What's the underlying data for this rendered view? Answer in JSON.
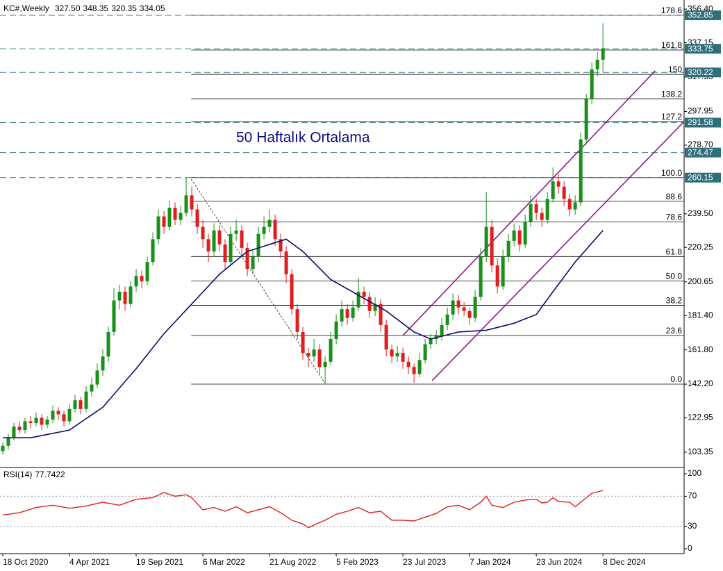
{
  "chart_data": [
    {
      "type": "candlestick",
      "title": "KC#,Weekly",
      "ohlc_labels": [
        "327.50",
        "348.35",
        "320.35",
        "334.05"
      ],
      "up_color": "#1a8f1a",
      "down_color": "#e01e1e",
      "xlim": [
        -0.5,
        122.6
      ],
      "ylim": [
        95,
        361.6
      ],
      "xticks": [
        {
          "value": 0,
          "label": "18 Oct 2020"
        },
        {
          "value": 12,
          "label": "4 Apr 2021"
        },
        {
          "value": 24,
          "label": "19 Sep 2021"
        },
        {
          "value": 36,
          "label": "6 Mar 2022"
        },
        {
          "value": 48,
          "label": "21 Aug 2022"
        },
        {
          "value": 60,
          "label": "5 Feb 2023"
        },
        {
          "value": 72,
          "label": "23 Jul 2023"
        },
        {
          "value": 84,
          "label": "7 Jan 2024"
        },
        {
          "value": 96,
          "label": "23 Jun 2024"
        },
        {
          "value": 108,
          "label": "8 Dec 2024"
        }
      ],
      "yticks": [
        {
          "value": 356.4,
          "label": "356.40"
        },
        337.15,
        317.55,
        {
          "value": 297.95,
          "label": "297.95"
        },
        {
          "value": 278.7,
          "label": "278.70"
        },
        {
          "value": 239.5,
          "label": "239.50"
        },
        220.25,
        200.65,
        {
          "value": 181.4,
          "label": "181.40"
        },
        {
          "value": 161.8,
          "label": "161.80"
        },
        {
          "value": 142.2,
          "label": "142.20"
        },
        122.95,
        103.35
      ],
      "candles": [
        [
          104,
          109,
          102,
          107
        ],
        [
          107,
          114,
          105,
          112
        ],
        [
          112,
          120,
          110,
          118
        ],
        [
          118,
          121,
          114,
          116
        ],
        [
          116,
          123,
          114,
          121
        ],
        [
          121,
          124,
          117,
          120
        ],
        [
          120,
          126,
          118,
          123
        ],
        [
          123,
          125,
          116,
          119
        ],
        [
          119,
          124,
          117,
          122
        ],
        [
          122,
          130,
          120,
          127
        ],
        [
          127,
          129,
          122,
          125
        ],
        [
          125,
          127,
          118,
          121
        ],
        [
          121,
          131,
          119,
          128
        ],
        [
          128,
          136,
          126,
          133
        ],
        [
          133,
          135,
          125,
          128
        ],
        [
          128,
          141,
          126,
          138
        ],
        [
          138,
          146,
          135,
          142
        ],
        [
          142,
          154,
          140,
          150
        ],
        [
          150,
          162,
          147,
          158
        ],
        [
          158,
          175,
          155,
          172
        ],
        [
          172,
          197,
          170,
          190
        ],
        [
          190,
          199,
          185,
          195
        ],
        [
          195,
          198,
          184,
          188
        ],
        [
          188,
          201,
          186,
          198
        ],
        [
          198,
          208,
          195,
          204
        ],
        [
          204,
          207,
          197,
          201
        ],
        [
          201,
          215,
          199,
          212
        ],
        [
          212,
          229,
          210,
          225
        ],
        [
          225,
          242,
          222,
          238
        ],
        [
          238,
          241,
          228,
          232
        ],
        [
          232,
          247,
          230,
          243
        ],
        [
          243,
          246,
          233,
          236
        ],
        [
          236,
          244,
          233,
          240
        ],
        [
          240,
          260,
          238,
          250
        ],
        [
          250,
          255,
          238,
          242
        ],
        [
          242,
          245,
          228,
          232
        ],
        [
          232,
          236,
          220,
          225
        ],
        [
          225,
          228,
          212,
          218
        ],
        [
          218,
          234,
          215,
          230
        ],
        [
          230,
          233,
          218,
          222
        ],
        [
          222,
          225,
          208,
          212
        ],
        [
          212,
          232,
          210,
          228
        ],
        [
          228,
          236,
          224,
          230
        ],
        [
          230,
          233,
          216,
          220
        ],
        [
          220,
          223,
          204,
          208
        ],
        [
          208,
          219,
          205,
          215
        ],
        [
          215,
          232,
          212,
          228
        ],
        [
          228,
          238,
          225,
          232
        ],
        [
          232,
          242,
          229,
          236
        ],
        [
          236,
          239,
          221,
          225
        ],
        [
          225,
          228,
          214,
          218
        ],
        [
          218,
          221,
          200,
          205
        ],
        [
          205,
          208,
          182,
          185
        ],
        [
          185,
          188,
          168,
          172
        ],
        [
          172,
          175,
          156,
          160
        ],
        [
          160,
          163,
          152,
          158
        ],
        [
          158,
          168,
          155,
          162
        ],
        [
          162,
          165,
          148,
          152
        ],
        [
          152,
          158,
          142.5,
          155
        ],
        [
          155,
          172,
          153,
          168
        ],
        [
          168,
          182,
          165,
          178
        ],
        [
          178,
          190,
          175,
          185
        ],
        [
          185,
          188,
          176,
          180
        ],
        [
          180,
          190,
          178,
          186
        ],
        [
          186,
          203,
          184,
          195
        ],
        [
          195,
          198,
          188,
          192
        ],
        [
          192,
          195,
          180,
          184
        ],
        [
          184,
          192,
          181,
          188
        ],
        [
          188,
          191,
          172,
          176
        ],
        [
          176,
          179,
          158,
          162
        ],
        [
          162,
          165,
          154,
          158
        ],
        [
          158,
          164,
          155,
          160
        ],
        [
          160,
          163,
          151,
          155
        ],
        [
          155,
          158,
          148,
          152
        ],
        [
          152,
          154,
          143,
          148
        ],
        [
          148,
          160,
          146,
          156
        ],
        [
          156,
          168,
          154,
          165
        ],
        [
          165,
          171,
          162,
          168
        ],
        [
          168,
          173,
          165,
          170
        ],
        [
          170,
          180,
          167,
          176
        ],
        [
          176,
          186,
          173,
          182
        ],
        [
          182,
          194,
          179,
          190
        ],
        [
          190,
          193,
          182,
          186
        ],
        [
          186,
          189,
          181,
          184
        ],
        [
          184,
          186,
          176,
          180
        ],
        [
          180,
          196,
          178,
          192
        ],
        [
          192,
          220,
          190,
          215
        ],
        [
          215,
          252,
          212,
          232
        ],
        [
          232,
          236,
          206,
          210
        ],
        [
          210,
          214,
          194,
          198
        ],
        [
          198,
          219,
          196,
          215
        ],
        [
          215,
          228,
          212,
          224
        ],
        [
          224,
          234,
          221,
          230
        ],
        [
          230,
          233,
          218,
          222
        ],
        [
          222,
          239,
          220,
          235
        ],
        [
          235,
          250,
          232,
          245
        ],
        [
          245,
          248,
          236,
          240
        ],
        [
          240,
          243,
          232,
          236
        ],
        [
          236,
          252,
          234,
          248
        ],
        [
          248,
          266,
          246,
          258
        ],
        [
          258,
          262,
          251,
          255
        ],
        [
          255,
          258,
          244,
          248
        ],
        [
          248,
          251,
          238,
          242
        ],
        [
          242,
          250,
          239,
          246
        ],
        [
          246,
          286,
          244,
          282
        ],
        [
          282,
          308,
          279,
          305
        ],
        [
          305,
          326,
          302,
          322
        ],
        [
          322,
          332,
          318,
          327.5
        ],
        [
          327.5,
          348.35,
          320.35,
          334.05
        ]
      ],
      "ma": {
        "color": "#0c0c6e",
        "x": [
          0,
          5,
          12,
          18,
          24,
          29,
          34,
          39,
          44,
          51,
          54,
          59,
          64,
          69,
          74,
          77,
          82,
          87,
          92,
          96,
          99,
          103,
          108
        ],
        "values": [
          111.6,
          111.6,
          116,
          129,
          151,
          171,
          188,
          205,
          218,
          225,
          218,
          202,
          193,
          184,
          172,
          168,
          172,
          173,
          177,
          182,
          195,
          212,
          230
        ]
      },
      "annotation": "50 Haftalık Ortalama",
      "fib": [
        {
          "label": "178.6",
          "value": 352.86
        },
        {
          "label": "161.8",
          "value": 333.03
        },
        {
          "label": "150",
          "value": 319.13
        },
        {
          "label": "138.2",
          "value": 305.2
        },
        {
          "label": "127.2",
          "value": 292.23
        },
        {
          "label": "100.0",
          "value": 260.15
        },
        {
          "label": "88.6",
          "value": 246.71
        },
        {
          "label": "78.6",
          "value": 234.91
        },
        {
          "label": "61.8",
          "value": 215.09
        },
        {
          "label": "50.0",
          "value": 201.18
        },
        {
          "label": "38.2",
          "value": 187.26
        },
        {
          "label": "23.6",
          "value": 170.04
        },
        {
          "label": "0.0",
          "value": 142.2
        }
      ],
      "price_levels": [
        352.85,
        333.75,
        320.22,
        291.58,
        274.47,
        260.15
      ],
      "trendlines": [
        {
          "color": "#8a1a8a",
          "x": [
            72,
            117.4
          ],
          "values": [
            170,
            321.2
          ]
        },
        {
          "color": "#8a1a8a",
          "x": [
            77.25,
            122.6
          ],
          "values": [
            144.2,
            292.2
          ]
        },
        {
          "color": "#222222",
          "dashed": true,
          "x": [
            33.9,
            58
          ],
          "values": [
            259.3,
            142.6
          ]
        }
      ]
    },
    {
      "type": "line",
      "title": "RSI(14)",
      "last_label": "77.7422",
      "color": "#e01e1e",
      "xlim": [
        -0.5,
        122.6
      ],
      "ylim": [
        -6.5,
        107.4
      ],
      "yticks": [
        100,
        70,
        30,
        0
      ],
      "levels": [
        70,
        30
      ],
      "x": [
        0,
        3,
        6,
        9,
        12,
        15,
        18,
        21,
        24,
        27,
        29,
        31,
        33,
        34,
        36,
        38,
        40,
        42,
        44,
        46,
        48,
        50,
        52,
        54,
        55,
        57,
        58,
        60,
        62,
        64,
        66,
        68,
        70,
        72,
        74,
        76,
        78,
        80,
        82,
        84,
        86,
        87,
        88,
        90,
        92,
        94,
        96,
        97,
        98,
        99,
        100,
        102,
        103,
        104,
        106,
        108
      ],
      "values": [
        45,
        48,
        55,
        58,
        54,
        57,
        62,
        58,
        66,
        68,
        75,
        70,
        72,
        68,
        52,
        55,
        50,
        56,
        48,
        52,
        56,
        48,
        38,
        33,
        28,
        35,
        38,
        46,
        50,
        55,
        48,
        50,
        38,
        38,
        37,
        42,
        47,
        56,
        58,
        52,
        62,
        70,
        58,
        55,
        62,
        65,
        66,
        61,
        62,
        68,
        63,
        62,
        56,
        62,
        74,
        77.7422
      ]
    }
  ]
}
